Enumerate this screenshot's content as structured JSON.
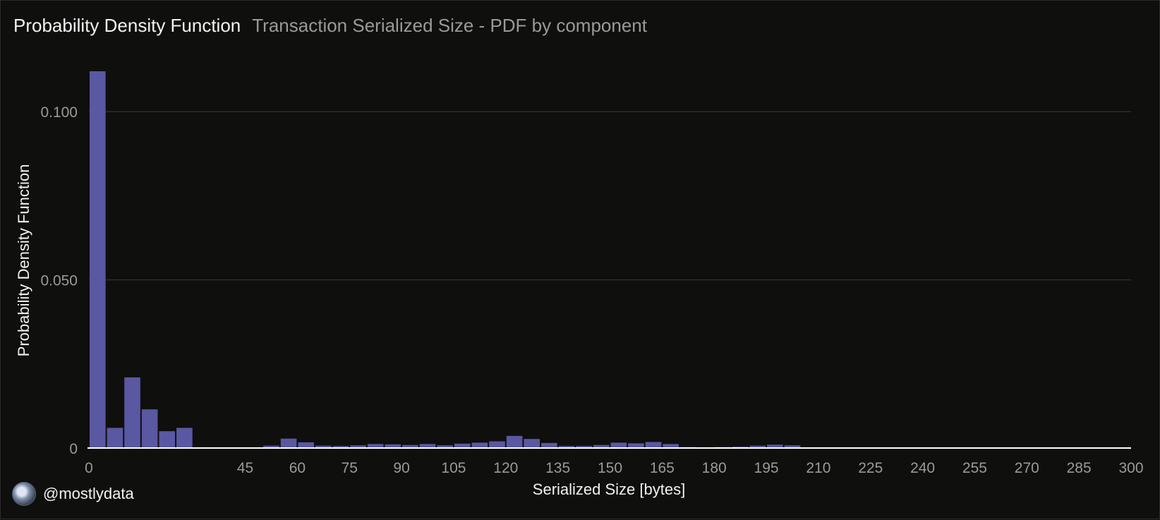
{
  "header": {
    "title": "Probability Density Function",
    "subtitle": "Transaction Serialized Size - PDF by component"
  },
  "footer": {
    "handle": "@mostlydata"
  },
  "colors": {
    "background": "#0f0f0e",
    "bar": "#5a58a2",
    "grid": "#2e2e2e",
    "axis": "#ffffff",
    "tick_text": "#9a9a9a",
    "label_text": "#f2f2f2"
  },
  "chart_data": {
    "type": "bar",
    "title": "Probability Density Function",
    "subtitle": "Transaction Serialized Size - PDF by component",
    "xlabel": "Serialized Size [bytes]",
    "ylabel": "Probability Density Function",
    "xlim": [
      0,
      300
    ],
    "ylim": [
      0,
      0.112
    ],
    "xticks": [
      0,
      45,
      60,
      75,
      90,
      105,
      120,
      135,
      150,
      165,
      180,
      195,
      210,
      225,
      240,
      255,
      270,
      285,
      300
    ],
    "yticks": [
      0,
      0.05,
      0.1
    ],
    "ytick_labels": [
      "0",
      "0.050",
      "0.100"
    ],
    "grid": true,
    "legend": false,
    "bins": {
      "start": 0,
      "width": 5,
      "values": [
        0.112,
        0.006,
        0.021,
        0.0115,
        0.005,
        0.006,
        0.0,
        0.0,
        0.0,
        0.0,
        0.0007,
        0.0028,
        0.0017,
        0.0007,
        0.0006,
        0.0008,
        0.0012,
        0.0011,
        0.0009,
        0.0012,
        0.0008,
        0.0013,
        0.0016,
        0.002,
        0.0036,
        0.0027,
        0.0015,
        0.0006,
        0.0006,
        0.0009,
        0.0016,
        0.0014,
        0.0018,
        0.0012,
        0.0003,
        0.0002,
        0.0003,
        0.0004,
        0.0007,
        0.001,
        0.0008,
        0.0002,
        0.0002,
        0.0001,
        0.0001,
        0.0001,
        0.0001,
        0.0001,
        0.0001,
        0.0001,
        0.0001,
        0.0001,
        0.0001,
        0.0001,
        0.0001,
        0.0001,
        0.0001,
        0.0001,
        0.0001,
        0.0001
      ]
    }
  }
}
